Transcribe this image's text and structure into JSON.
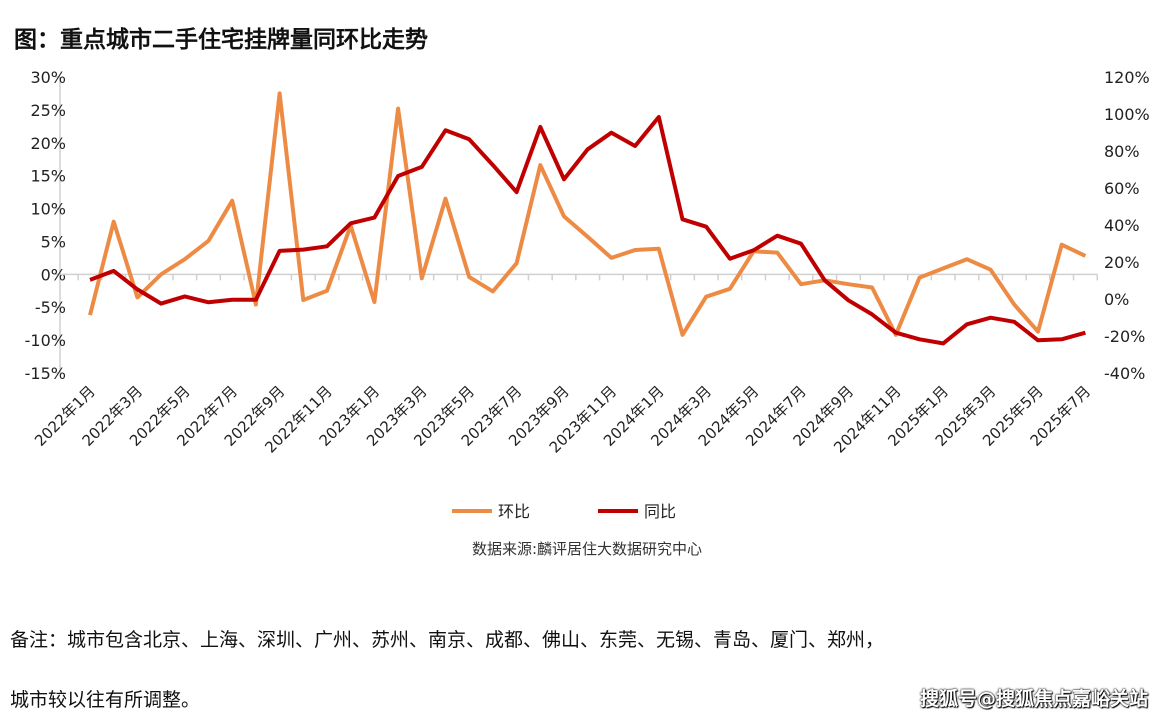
{
  "title": "图：重点城市二手住宅挂牌量同环比走势",
  "chart_data": {
    "type": "line",
    "title": "图：重点城市二手住宅挂牌量同环比走势",
    "x": [
      "2022年1月",
      "2022年2月",
      "2022年3月",
      "2022年4月",
      "2022年5月",
      "2022年6月",
      "2022年7月",
      "2022年8月",
      "2022年9月",
      "2022年10月",
      "2022年11月",
      "2022年12月",
      "2023年1月",
      "2023年2月",
      "2023年3月",
      "2023年4月",
      "2023年5月",
      "2023年6月",
      "2023年7月",
      "2023年8月",
      "2023年9月",
      "2023年10月",
      "2023年11月",
      "2023年12月",
      "2024年1月",
      "2024年2月",
      "2024年3月",
      "2024年4月",
      "2024年5月",
      "2024年6月",
      "2024年7月",
      "2024年8月",
      "2024年9月",
      "2024年10月",
      "2024年11月",
      "2024年12月",
      "2025年1月",
      "2025年2月",
      "2025年3月",
      "2025年4月",
      "2025年5月",
      "2025年6月",
      "2025年7月"
    ],
    "tick_labels": [
      "2022年1月",
      "2022年3月",
      "2022年5月",
      "2022年7月",
      "2022年9月",
      "2022年11月",
      "2023年1月",
      "2023年3月",
      "2023年5月",
      "2023年7月",
      "2023年9月",
      "2023年11月",
      "2024年1月",
      "2024年3月",
      "2024年5月",
      "2024年7月",
      "2024年9月",
      "2024年11月",
      "2025年1月",
      "2025年3月",
      "2025年5月",
      "2025年7月"
    ],
    "left_axis": {
      "ylim": [
        -15,
        30
      ],
      "ticks": [
        "30%",
        "25%",
        "20%",
        "15%",
        "10%",
        "5%",
        "0%",
        "-5%",
        "-10%",
        "-15%"
      ],
      "tick_values": [
        30,
        25,
        20,
        15,
        10,
        5,
        0,
        -5,
        -10,
        -15
      ]
    },
    "right_axis": {
      "ylim": [
        -40,
        120
      ],
      "ticks": [
        "120%",
        "100%",
        "80%",
        "60%",
        "40%",
        "20%",
        "0%",
        "-20%",
        "-40%"
      ],
      "tick_values": [
        120,
        100,
        80,
        60,
        40,
        20,
        0,
        -20,
        -40
      ]
    },
    "series": [
      {
        "name": "环比",
        "axis": "left",
        "color": "#ED8B45",
        "values": [
          -6.2,
          8.0,
          -3.5,
          0.0,
          2.3,
          5.1,
          11.2,
          -4.6,
          27.5,
          -3.9,
          -2.5,
          7.4,
          -4.2,
          25.2,
          -0.6,
          11.5,
          -0.4,
          -2.6,
          1.7,
          16.6,
          8.8,
          5.7,
          2.5,
          3.7,
          3.9,
          -9.2,
          -3.4,
          -2.2,
          3.5,
          3.3,
          -1.5,
          -0.9,
          -1.5,
          -2.0,
          -9.2,
          -0.5,
          0.9,
          2.3,
          0.7,
          -4.6,
          -8.7,
          4.5,
          2.8
        ]
      },
      {
        "name": "同比",
        "axis": "right",
        "color": "#C00000",
        "values": [
          10.3,
          15.2,
          5.2,
          -2.5,
          1.4,
          -1.8,
          -0.4,
          -0.4,
          26.0,
          26.7,
          28.5,
          40.9,
          44.0,
          66.5,
          71.4,
          91.2,
          86.3,
          72.4,
          57.8,
          93.0,
          64.7,
          80.9,
          89.9,
          82.7,
          98.4,
          43.1,
          39.1,
          21.8,
          26.3,
          34.2,
          29.9,
          10.1,
          -0.7,
          -8.3,
          -18.2,
          -21.8,
          -24.0,
          -13.7,
          -10.1,
          -12.3,
          -22.3,
          -21.8,
          -18.2
        ]
      }
    ],
    "legend": "bottom",
    "grid": false
  },
  "source": "数据来源:麟评居住大数据研究中心",
  "note_line1": "备注：城市包含北京、上海、深圳、广州、苏州、南京、成都、佛山、东莞、无锡、青岛、厦门、郑州，",
  "note_line2": "城市较以往有所调整。",
  "watermark": "搜狐号@搜狐焦点嘉峪关站"
}
